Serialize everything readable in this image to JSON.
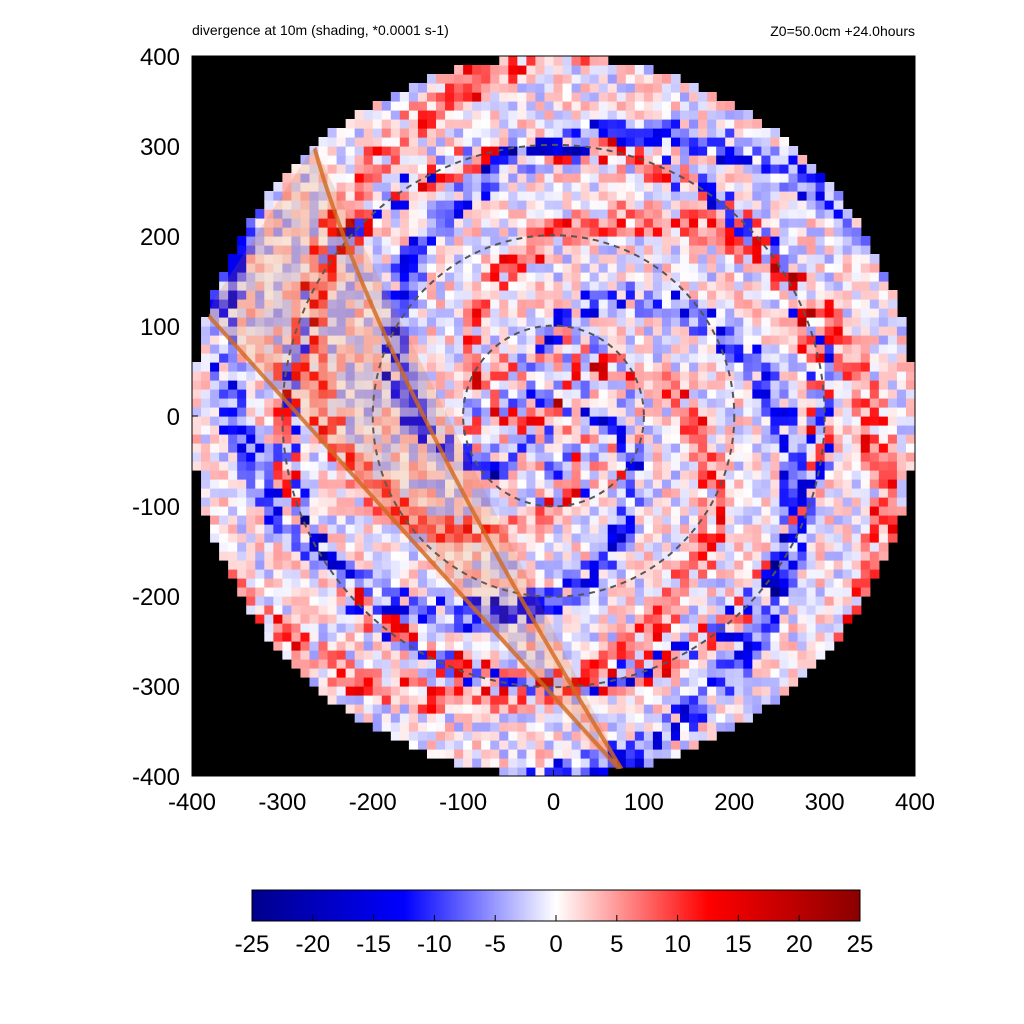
{
  "chart_data": {
    "type": "heatmap",
    "title": "divergence at 10m (shading, *0.0001 s-1)",
    "subtitle": "Z0=50.0cm  +24.0hours",
    "xlim": [
      -400,
      400
    ],
    "ylim": [
      -400,
      400
    ],
    "x_ticks": [
      "-400",
      "-300",
      "-200",
      "-100",
      "0",
      "100",
      "200",
      "300",
      "400"
    ],
    "y_ticks": [
      "400",
      "300",
      "200",
      "100",
      "0",
      "-100",
      "-200",
      "-300",
      "-400"
    ],
    "domain_radius": 400,
    "range_rings_radius": [
      100,
      200,
      300
    ],
    "colorbar": {
      "range": [
        -25,
        25
      ],
      "ticks": [
        "-25",
        "-20",
        "-15",
        "-10",
        "-5",
        "0",
        "5",
        "10",
        "15",
        "20",
        "25"
      ],
      "colors": [
        "#00008b",
        "#0000ff",
        "#ffffff",
        "#ff0000",
        "#8b0000"
      ]
    },
    "background_color": "#000000",
    "wedge_color": "#d2691e",
    "grid": false
  }
}
